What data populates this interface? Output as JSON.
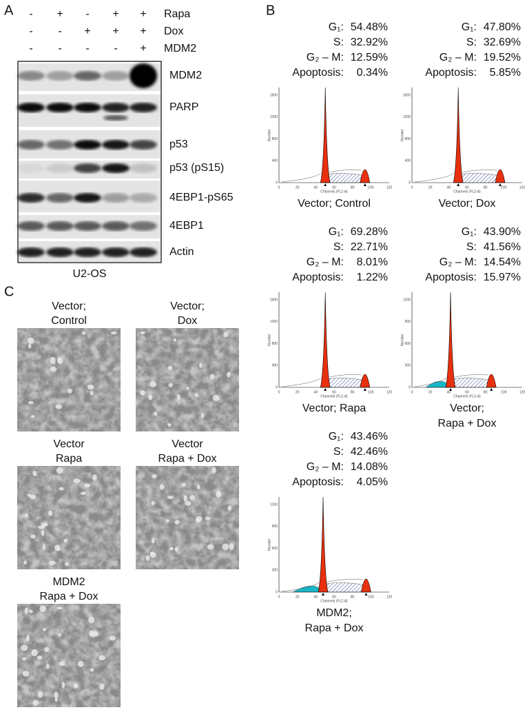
{
  "panel_a": {
    "label": "A",
    "treatments": [
      {
        "name": "Rapa",
        "signs": [
          "-",
          "+",
          "-",
          "+",
          "+"
        ]
      },
      {
        "name": "Dox",
        "signs": [
          "-",
          "-",
          "+",
          "+",
          "+"
        ]
      },
      {
        "name": "MDM2",
        "signs": [
          "-",
          "-",
          "-",
          "-",
          "+"
        ]
      }
    ],
    "blots": [
      "MDM2",
      "PARP",
      "p53",
      "p53 (pS15)",
      "4EBP1-pS65",
      "4EBP1",
      "Actin"
    ],
    "cell_line": "U2-OS"
  },
  "panel_b": {
    "label": "B",
    "histograms": [
      {
        "stats": [
          {
            "label": "G₁:",
            "value": "54.48%"
          },
          {
            "label": "S:",
            "value": "32.92%"
          },
          {
            "label": "G₂ – M:",
            "value": "12.59%"
          },
          {
            "label": "Apoptosis:",
            "value": "0.34%"
          }
        ],
        "caption": [
          "Vector; Control"
        ],
        "xlabel": "Channels (FL2-A)",
        "ylabel": "Number",
        "xticks": [
          "0",
          "20",
          "40",
          "60",
          "80",
          "100",
          "120"
        ],
        "yticks": [
          "0",
          "400",
          "800",
          "1200",
          "1600"
        ]
      },
      {
        "stats": [
          {
            "label": "G₁:",
            "value": "47.80%"
          },
          {
            "label": "S:",
            "value": "32.69%"
          },
          {
            "label": "G₂ – M:",
            "value": "19.52%"
          },
          {
            "label": "Apoptosis:",
            "value": "5.85%"
          }
        ],
        "caption": [
          "Vector; Dox"
        ],
        "xlabel": "Channels (FL2-A)",
        "ylabel": "Number",
        "xticks": [
          "0",
          "20",
          "40",
          "60",
          "80",
          "100",
          "120"
        ],
        "yticks": [
          "0",
          "400",
          "800",
          "1200",
          "1600"
        ]
      },
      {
        "stats": [
          {
            "label": "G₁:",
            "value": "69.28%"
          },
          {
            "label": "S:",
            "value": "22.71%"
          },
          {
            "label": "G₂ – M:",
            "value": "8.01%"
          },
          {
            "label": "Apoptosis:",
            "value": "1.22%"
          }
        ],
        "caption": [
          "Vector; Rapa"
        ],
        "xlabel": "Channels (FL2-A)",
        "ylabel": "Number",
        "xticks": [
          "0",
          "20",
          "40",
          "60",
          "80",
          "100",
          "120"
        ],
        "yticks": [
          "0",
          "400",
          "800",
          "1200",
          "1600"
        ]
      },
      {
        "stats": [
          {
            "label": "G₁:",
            "value": "43.90%"
          },
          {
            "label": "S:",
            "value": "41.56%"
          },
          {
            "label": "G₂ – M:",
            "value": "14.54%"
          },
          {
            "label": "Apoptosis:",
            "value": "15.97%"
          }
        ],
        "caption": [
          "Vector;",
          "Rapa + Dox"
        ],
        "xlabel": "Channels (FL2-A)",
        "ylabel": "Number",
        "xticks": [
          "0",
          "20",
          "40",
          "60",
          "80",
          "100",
          "120"
        ],
        "yticks": [
          "0",
          "300",
          "600",
          "900",
          "1200"
        ]
      },
      {
        "stats": [
          {
            "label": "G₁:",
            "value": "43.46%"
          },
          {
            "label": "S:",
            "value": "42.46%"
          },
          {
            "label": "G₂ – M:",
            "value": "14.08%"
          },
          {
            "label": "Apoptosis:",
            "value": "4.05%"
          }
        ],
        "caption": [
          "MDM2;",
          "Rapa + Dox"
        ],
        "xlabel": "Channels (FL2-A)",
        "ylabel": "Number",
        "xticks": [
          "0",
          "20",
          "40",
          "60",
          "80",
          "100",
          "120"
        ],
        "yticks": [
          "0",
          "300",
          "600",
          "900",
          "1200"
        ]
      }
    ]
  },
  "panel_c": {
    "label": "C",
    "images": [
      {
        "title": [
          "Vector;",
          "Control"
        ]
      },
      {
        "title": [
          "Vector;",
          "Dox"
        ]
      },
      {
        "title": [
          "Vector",
          "Rapa"
        ]
      },
      {
        "title": [
          "Vector",
          "Rapa + Dox"
        ]
      },
      {
        "title": [
          "MDM2",
          "Rapa + Dox"
        ]
      }
    ]
  }
}
